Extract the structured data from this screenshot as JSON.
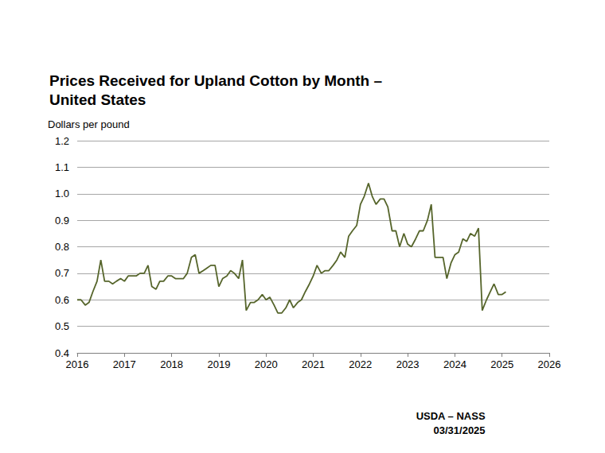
{
  "chart_data": {
    "type": "line",
    "title": "Prices Received for Upland Cotton by Month –\nUnited States",
    "y_label": "Dollars per pound",
    "source": "USDA – NASS",
    "date": "03/31/2025",
    "color": "#56652b",
    "grid": true,
    "xlim": [
      2016,
      2026
    ],
    "xticks": [
      2016,
      2017,
      2018,
      2019,
      2020,
      2021,
      2022,
      2023,
      2024,
      2025,
      2026
    ],
    "ylim": [
      0.4,
      1.2
    ],
    "yticks": [
      0.4,
      0.5,
      0.6,
      0.7,
      0.8,
      0.9,
      {
        "value": 1.0,
        "label": "1.0"
      },
      1.1,
      1.2
    ],
    "x": [
      2016.0,
      2016.08,
      2016.17,
      2016.25,
      2016.33,
      2016.42,
      2016.5,
      2016.58,
      2016.67,
      2016.75,
      2016.83,
      2016.92,
      2017.0,
      2017.08,
      2017.17,
      2017.25,
      2017.33,
      2017.42,
      2017.5,
      2017.58,
      2017.67,
      2017.75,
      2017.83,
      2017.92,
      2018.0,
      2018.08,
      2018.17,
      2018.25,
      2018.33,
      2018.42,
      2018.5,
      2018.58,
      2018.67,
      2018.75,
      2018.83,
      2018.92,
      2019.0,
      2019.08,
      2019.17,
      2019.25,
      2019.33,
      2019.42,
      2019.5,
      2019.58,
      2019.67,
      2019.75,
      2019.83,
      2019.92,
      2020.0,
      2020.08,
      2020.17,
      2020.25,
      2020.33,
      2020.42,
      2020.5,
      2020.58,
      2020.67,
      2020.75,
      2020.83,
      2020.92,
      2021.0,
      2021.08,
      2021.17,
      2021.25,
      2021.33,
      2021.42,
      2021.5,
      2021.58,
      2021.67,
      2021.75,
      2021.83,
      2021.92,
      2022.0,
      2022.08,
      2022.17,
      2022.25,
      2022.33,
      2022.42,
      2022.5,
      2022.58,
      2022.67,
      2022.75,
      2022.83,
      2022.92,
      2023.0,
      2023.08,
      2023.17,
      2023.25,
      2023.33,
      2023.42,
      2023.5,
      2023.58,
      2023.67,
      2023.75,
      2023.83,
      2023.92,
      2024.0,
      2024.08,
      2024.17,
      2024.25,
      2024.33,
      2024.42,
      2024.5,
      2024.58,
      2024.67,
      2024.75,
      2024.83,
      2024.92,
      2025.0,
      2025.08
    ],
    "values": [
      0.6,
      0.6,
      0.58,
      0.59,
      0.63,
      0.67,
      0.75,
      0.67,
      0.67,
      0.66,
      0.67,
      0.68,
      0.67,
      0.69,
      0.69,
      0.69,
      0.7,
      0.7,
      0.73,
      0.65,
      0.64,
      0.67,
      0.67,
      0.69,
      0.69,
      0.68,
      0.68,
      0.68,
      0.7,
      0.76,
      0.77,
      0.7,
      0.71,
      0.72,
      0.73,
      0.73,
      0.65,
      0.68,
      0.69,
      0.71,
      0.7,
      0.68,
      0.75,
      0.56,
      0.59,
      0.59,
      0.6,
      0.62,
      0.6,
      0.61,
      0.58,
      0.55,
      0.55,
      0.57,
      0.6,
      0.57,
      0.59,
      0.6,
      0.63,
      0.66,
      0.69,
      0.73,
      0.7,
      0.71,
      0.71,
      0.73,
      0.75,
      0.78,
      0.76,
      0.84,
      0.86,
      0.88,
      0.96,
      0.99,
      1.04,
      0.99,
      0.96,
      0.98,
      0.98,
      0.95,
      0.86,
      0.86,
      0.8,
      0.85,
      0.81,
      0.8,
      0.83,
      0.86,
      0.86,
      0.9,
      0.96,
      0.76,
      0.76,
      0.76,
      0.68,
      0.74,
      0.77,
      0.78,
      0.83,
      0.82,
      0.85,
      0.84,
      0.87,
      0.56,
      0.6,
      0.63,
      0.66,
      0.62,
      0.62,
      0.63
    ]
  }
}
